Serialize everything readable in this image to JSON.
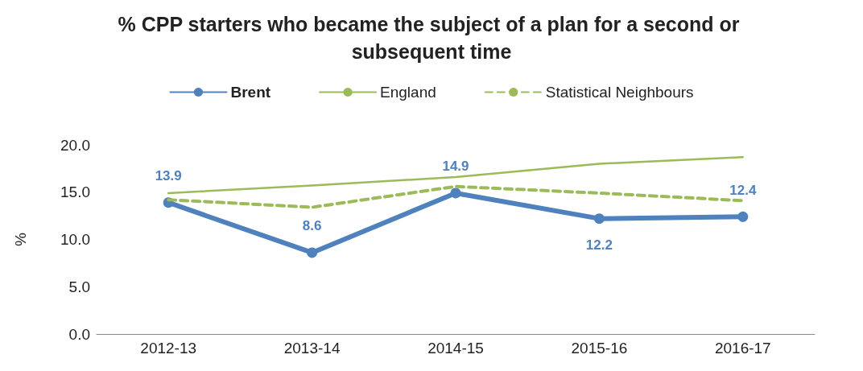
{
  "chart_data": {
    "type": "line",
    "title": "% CPP starters who became the subject of a plan for a second or subsequent time",
    "ylabel": "%",
    "categories": [
      "2012-13",
      "2013-14",
      "2014-15",
      "2015-16",
      "2016-17"
    ],
    "series": [
      {
        "name": "Brent",
        "color": "#4f81bd",
        "values": [
          13.9,
          8.6,
          14.9,
          12.2,
          12.4
        ],
        "marker": "circle",
        "line_style": "solid",
        "value_labels": [
          "13.9",
          "8.6",
          "14.9",
          "12.2",
          "12.4"
        ]
      },
      {
        "name": "England",
        "color": "#9bbb59",
        "values": [
          14.9,
          15.7,
          16.6,
          18.0,
          18.7
        ],
        "marker": "none",
        "line_style": "solid"
      },
      {
        "name": "Statistical Neighbours",
        "color": "#9bbb59",
        "values": [
          14.2,
          13.4,
          15.6,
          14.9,
          14.1
        ],
        "marker": "none",
        "line_style": "dashed"
      }
    ],
    "ylim": [
      0,
      20
    ],
    "yticks": [
      {
        "value": 0,
        "label": "0.0"
      },
      {
        "value": 5,
        "label": "5.0"
      },
      {
        "value": 10,
        "label": "10.0"
      },
      {
        "value": 15,
        "label": "15.0"
      },
      {
        "value": 20,
        "label": "20.0"
      }
    ],
    "grid": false,
    "legend": "top"
  }
}
